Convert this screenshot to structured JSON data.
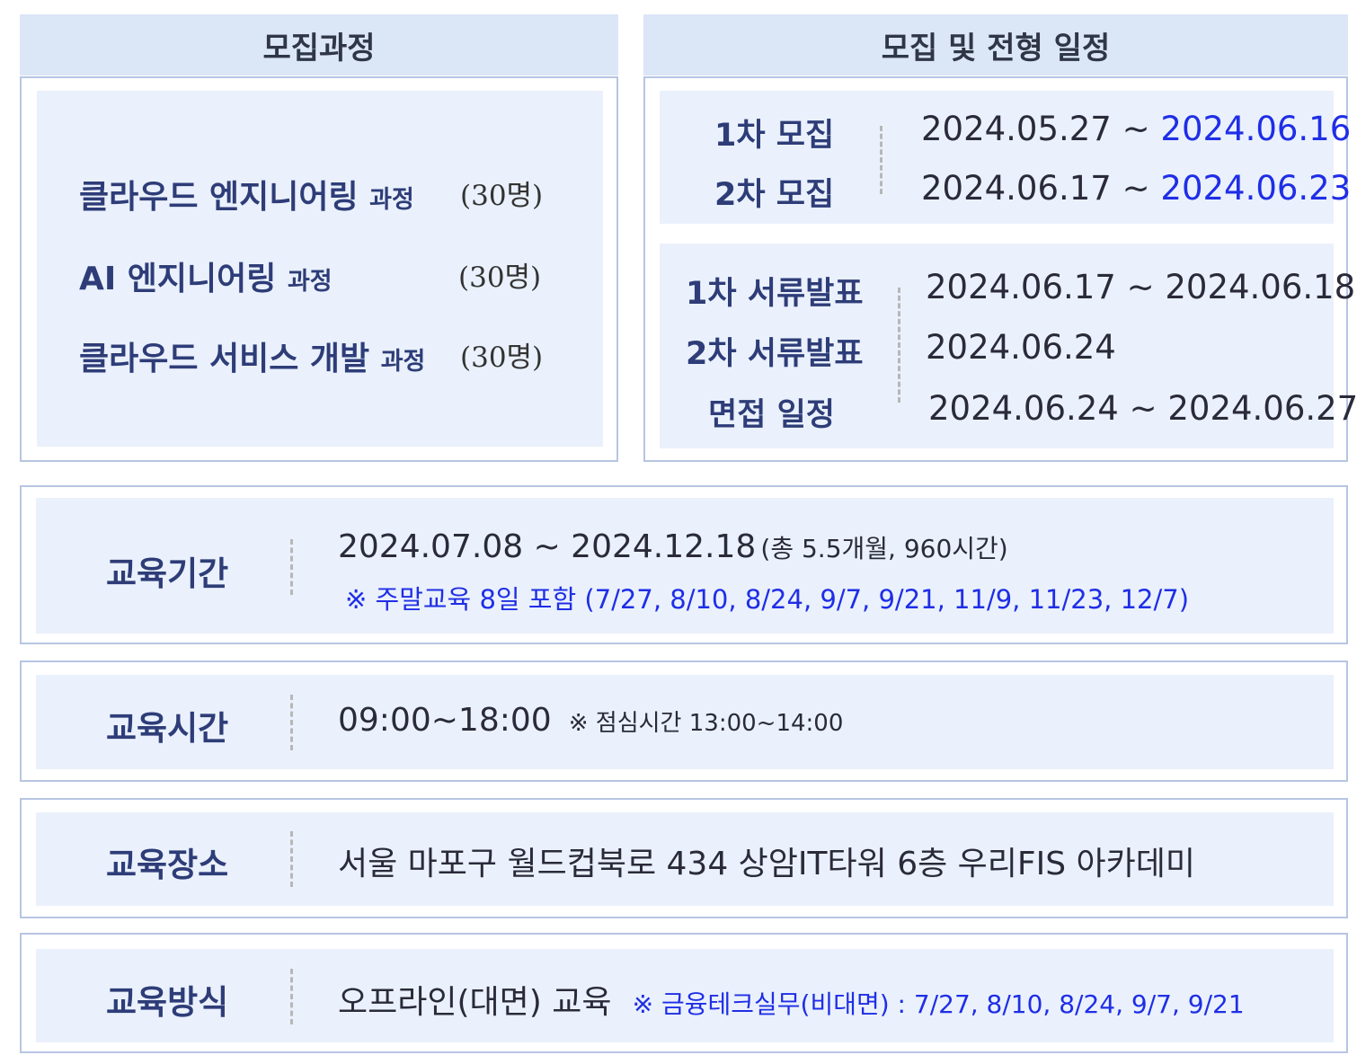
{
  "recruit_courses": {
    "header": "모집과정",
    "courses": [
      {
        "name": "클라우드 엔지니어링",
        "suffix": "과정",
        "count": "(30명)"
      },
      {
        "name": "AI 엔지니어링",
        "suffix": "과정",
        "count": "(30명)"
      },
      {
        "name": "클라우드 서비스 개발",
        "suffix": "과정",
        "count": "(30명)"
      }
    ]
  },
  "schedule": {
    "header": "모집 및 전형 일정",
    "recruit": [
      {
        "label": "1차 모집",
        "start": "2024.05.27",
        "sep": "~",
        "end": "2024.06.16"
      },
      {
        "label": "2차 모집",
        "start": "2024.06.17",
        "sep": "~",
        "end": "2024.06.23"
      }
    ],
    "selection": [
      {
        "label": "1차 서류발표",
        "date": "2024.06.17 ~ 2024.06.18"
      },
      {
        "label": "2차 서류발표",
        "date": "2024.06.24"
      },
      {
        "label": "면접 일정",
        "date": "2024.06.24 ~ 2024.06.27"
      }
    ]
  },
  "period": {
    "label": "교육기간",
    "dates": "2024.07.08 ~ 2024.12.18",
    "summary": "(총 5.5개월, 960시간)",
    "note": "※ 주말교육 8일 포함 (7/27, 8/10, 8/24, 9/7, 9/21, 11/9, 11/23, 12/7)"
  },
  "time": {
    "label": "교육시간",
    "hours": "09:00~18:00",
    "note": "※ 점심시간 13:00~14:00"
  },
  "place": {
    "label": "교육장소",
    "address": "서울 마포구 월드컵북로 434 상암IT타워 6층 우리FIS 아카데미"
  },
  "method": {
    "label": "교육방식",
    "value": "오프라인(대면) 교육",
    "note": "※ 금융테크실무(비대면) : 7/27, 8/10, 8/24, 9/7, 9/21"
  },
  "colors": {
    "accent_blue": "#1f2ee6",
    "header_bg": "#dbe6f7",
    "panel_bg": "#eaf1fc",
    "border": "#b7c5e3"
  }
}
